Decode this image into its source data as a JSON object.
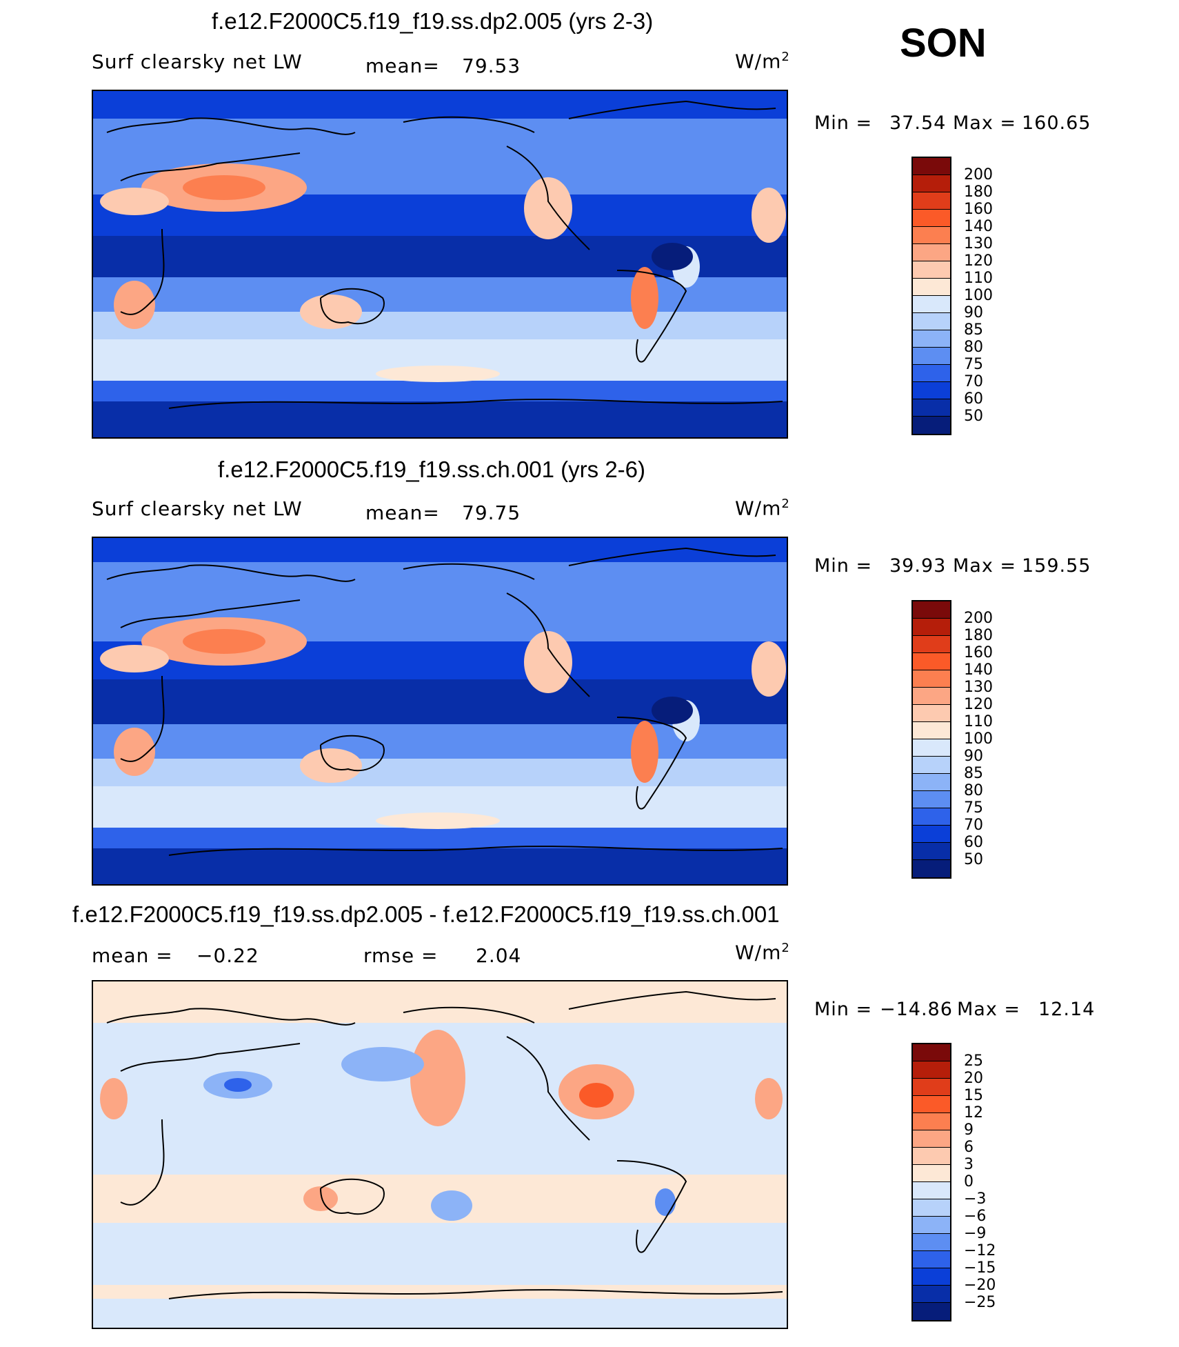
{
  "season": "SON",
  "panels": [
    {
      "id": "p1",
      "title": "f.e12.F2000C5.f19_f19.ss.dp2.005 (yrs 2-3)",
      "variable": "Surf clearsky net LW",
      "stat1_label": "mean=",
      "stat1_value": "79.53",
      "units": "W/m",
      "units_exp": "2",
      "min_label": "Min =",
      "min_value": "37.54",
      "max_label": "Max =",
      "max_value": "160.65",
      "colorbar": [
        "200",
        "180",
        "160",
        "140",
        "130",
        "120",
        "110",
        "100",
        "90",
        "85",
        "80",
        "75",
        "70",
        "60",
        "50"
      ]
    },
    {
      "id": "p2",
      "title": "f.e12.F2000C5.f19_f19.ss.ch.001 (yrs 2-6)",
      "variable": "Surf clearsky net LW",
      "stat1_label": "mean=",
      "stat1_value": "79.75",
      "units": "W/m",
      "units_exp": "2",
      "min_label": "Min =",
      "min_value": "39.93",
      "max_label": "Max =",
      "max_value": "159.55",
      "colorbar": [
        "200",
        "180",
        "160",
        "140",
        "130",
        "120",
        "110",
        "100",
        "90",
        "85",
        "80",
        "75",
        "70",
        "60",
        "50"
      ]
    },
    {
      "id": "p3",
      "title": "f.e12.F2000C5.f19_f19.ss.dp2.005 - f.e12.F2000C5.f19_f19.ss.ch.001",
      "stat1_label": "mean =",
      "stat1_value": "−0.22",
      "stat2_label": "rmse =",
      "stat2_value": "2.04",
      "units": "W/m",
      "units_exp": "2",
      "min_label": "Min =",
      "min_value": "−14.86",
      "max_label": "Max =",
      "max_value": "12.14",
      "colorbar": [
        "25",
        "20",
        "15",
        "12",
        "9",
        "6",
        "3",
        "0",
        "−3",
        "−6",
        "−9",
        "−12",
        "−15",
        "−20",
        "−25"
      ]
    }
  ],
  "colors": {
    "palette": [
      "#7a0a0a",
      "#b51e0a",
      "#e03d1a",
      "#fb5a28",
      "#fc7f50",
      "#fca684",
      "#fdcab0",
      "#fde8d6",
      "#d9e8fb",
      "#b7d2fa",
      "#8cb3f7",
      "#5d8ef2",
      "#2e62ea",
      "#0b3fd8",
      "#082ea8",
      "#061d7a"
    ]
  }
}
